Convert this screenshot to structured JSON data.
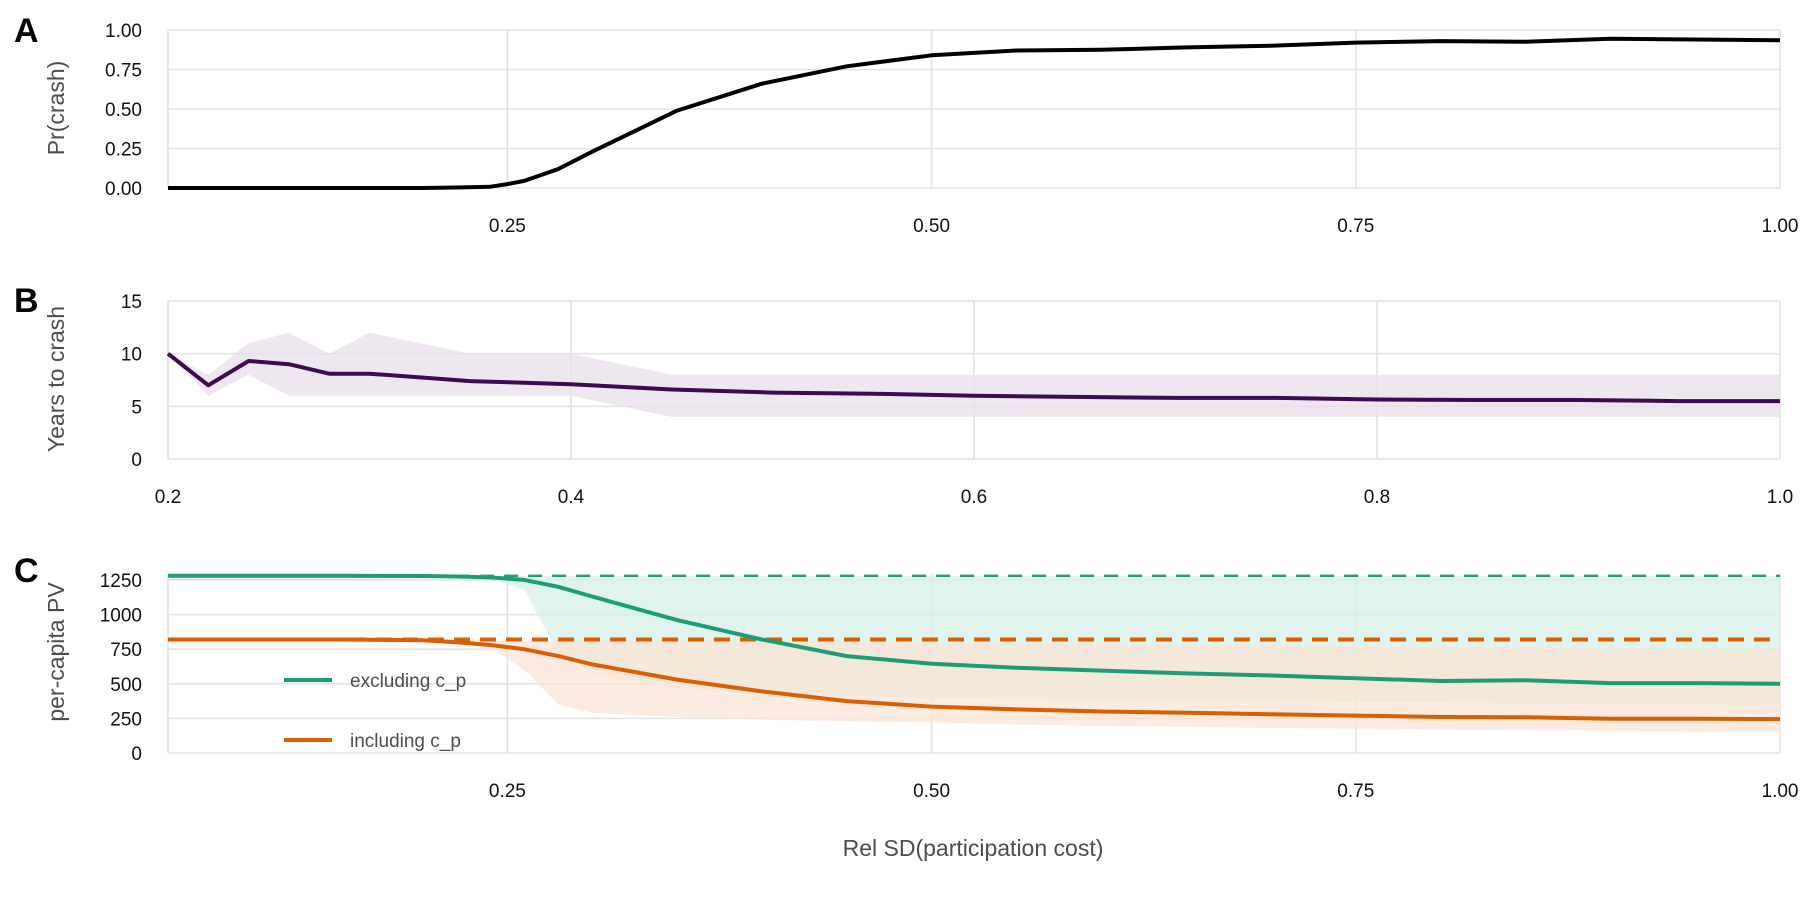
{
  "chart_data": [
    {
      "panel": "A",
      "type": "line",
      "ylabel": "Pr(crash)",
      "xlim": [
        0.05,
        1.0
      ],
      "ylim": [
        0,
        1
      ],
      "xticks": [
        0.25,
        0.5,
        0.75,
        1.0
      ],
      "xtick_labels": [
        "0.25",
        "0.50",
        "0.75",
        "1.00"
      ],
      "yticks": [
        0,
        0.25,
        0.5,
        0.75,
        1.0
      ],
      "ytick_labels": [
        "0.00",
        "0.25",
        "0.50",
        "0.75",
        "1.00"
      ],
      "grid": true,
      "color": "#000000",
      "x": [
        0.05,
        0.1,
        0.15,
        0.2,
        0.22,
        0.24,
        0.25,
        0.26,
        0.28,
        0.3,
        0.35,
        0.4,
        0.45,
        0.5,
        0.55,
        0.6,
        0.65,
        0.7,
        0.75,
        0.8,
        0.85,
        0.9,
        0.95,
        1.0
      ],
      "y": [
        0,
        0,
        0,
        0,
        0.003,
        0.008,
        0.025,
        0.045,
        0.12,
        0.23,
        0.49,
        0.66,
        0.77,
        0.84,
        0.87,
        0.875,
        0.89,
        0.9,
        0.92,
        0.93,
        0.925,
        0.945,
        0.94,
        0.935
      ]
    },
    {
      "panel": "B",
      "type": "line",
      "ylabel": "Years to crash",
      "xlim": [
        0.2,
        1.0
      ],
      "ylim": [
        0,
        15
      ],
      "xticks": [
        0.2,
        0.4,
        0.6,
        0.8,
        1.0
      ],
      "xtick_labels": [
        "0.2",
        "0.4",
        "0.6",
        "0.8",
        "1.0"
      ],
      "yticks": [
        0,
        5,
        10,
        15
      ],
      "ytick_labels": [
        "0",
        "5",
        "10",
        "15"
      ],
      "grid": true,
      "color": "#3f0a4f",
      "band_color": "#e8dfeb",
      "x": [
        0.2,
        0.22,
        0.24,
        0.26,
        0.28,
        0.3,
        0.35,
        0.4,
        0.45,
        0.5,
        0.55,
        0.6,
        0.65,
        0.7,
        0.75,
        0.8,
        0.85,
        0.9,
        0.95,
        1.0
      ],
      "y": [
        10,
        7,
        9.3,
        9,
        8.1,
        8.1,
        7.4,
        7.1,
        6.6,
        6.3,
        6.2,
        6,
        5.9,
        5.8,
        5.8,
        5.65,
        5.6,
        5.6,
        5.5,
        5.5
      ],
      "lower": [
        10,
        6,
        8,
        6,
        6,
        6,
        6,
        6,
        4,
        4,
        4,
        4,
        4,
        4,
        4,
        4,
        4,
        4,
        4,
        4
      ],
      "upper": [
        10,
        8,
        11,
        12,
        10,
        12,
        10,
        10,
        8,
        8,
        8,
        8,
        8,
        8,
        8,
        8,
        8,
        8,
        8,
        8
      ]
    },
    {
      "panel": "C",
      "type": "line",
      "ylabel": "per-capita PV",
      "xlabel": "Rel SD(participation cost)",
      "xlim": [
        0.05,
        1.0
      ],
      "ylim": [
        0,
        1300
      ],
      "xticks": [
        0.25,
        0.5,
        0.75,
        1.0
      ],
      "xtick_labels": [
        "0.25",
        "0.50",
        "0.75",
        "1.00"
      ],
      "yticks": [
        0,
        250,
        500,
        750,
        1000,
        1250
      ],
      "ytick_labels": [
        "0",
        "250",
        "500",
        "750",
        "1000",
        "1250"
      ],
      "grid": true,
      "legend_position": "bottom-left inside",
      "x": [
        0.05,
        0.1,
        0.15,
        0.2,
        0.22,
        0.24,
        0.26,
        0.28,
        0.3,
        0.35,
        0.4,
        0.45,
        0.5,
        0.55,
        0.6,
        0.65,
        0.7,
        0.75,
        0.8,
        0.85,
        0.9,
        0.95,
        1.0
      ],
      "series": [
        {
          "name": "excluding c_p",
          "color": "#1b9e77",
          "band_color": "#d6efe6",
          "reference": 1280,
          "y": [
            1280,
            1280,
            1280,
            1278,
            1275,
            1268,
            1250,
            1200,
            1130,
            960,
            820,
            700,
            645,
            615,
            595,
            575,
            560,
            540,
            520,
            525,
            505,
            505,
            500
          ],
          "lower": [
            1278,
            1278,
            1278,
            1275,
            1272,
            1260,
            1180,
            720,
            580,
            470,
            430,
            410,
            400,
            390,
            385,
            380,
            375,
            370,
            365,
            360,
            358,
            356,
            355
          ],
          "upper": [
            1282,
            1282,
            1282,
            1280,
            1280,
            1280,
            1280,
            1280,
            1280,
            1280,
            1280,
            1280,
            1280,
            1280,
            1280,
            1280,
            1280,
            1280,
            1280,
            1280,
            1280,
            1280,
            1280
          ]
        },
        {
          "name": "including c_p",
          "color": "#d95f02",
          "band_color": "#fbe4d6",
          "reference": 820,
          "y": [
            820,
            820,
            820,
            815,
            800,
            780,
            750,
            700,
            640,
            530,
            445,
            375,
            335,
            315,
            300,
            290,
            280,
            270,
            260,
            258,
            248,
            247,
            245
          ],
          "lower": [
            812,
            812,
            812,
            805,
            790,
            760,
            600,
            350,
            290,
            260,
            240,
            230,
            220,
            205,
            195,
            190,
            180,
            175,
            170,
            165,
            160,
            155,
            150
          ],
          "upper": [
            828,
            828,
            828,
            825,
            818,
            812,
            810,
            808,
            806,
            804,
            802,
            800,
            795,
            790,
            785,
            780,
            775,
            770,
            765,
            760,
            755,
            750,
            745
          ]
        }
      ]
    }
  ]
}
